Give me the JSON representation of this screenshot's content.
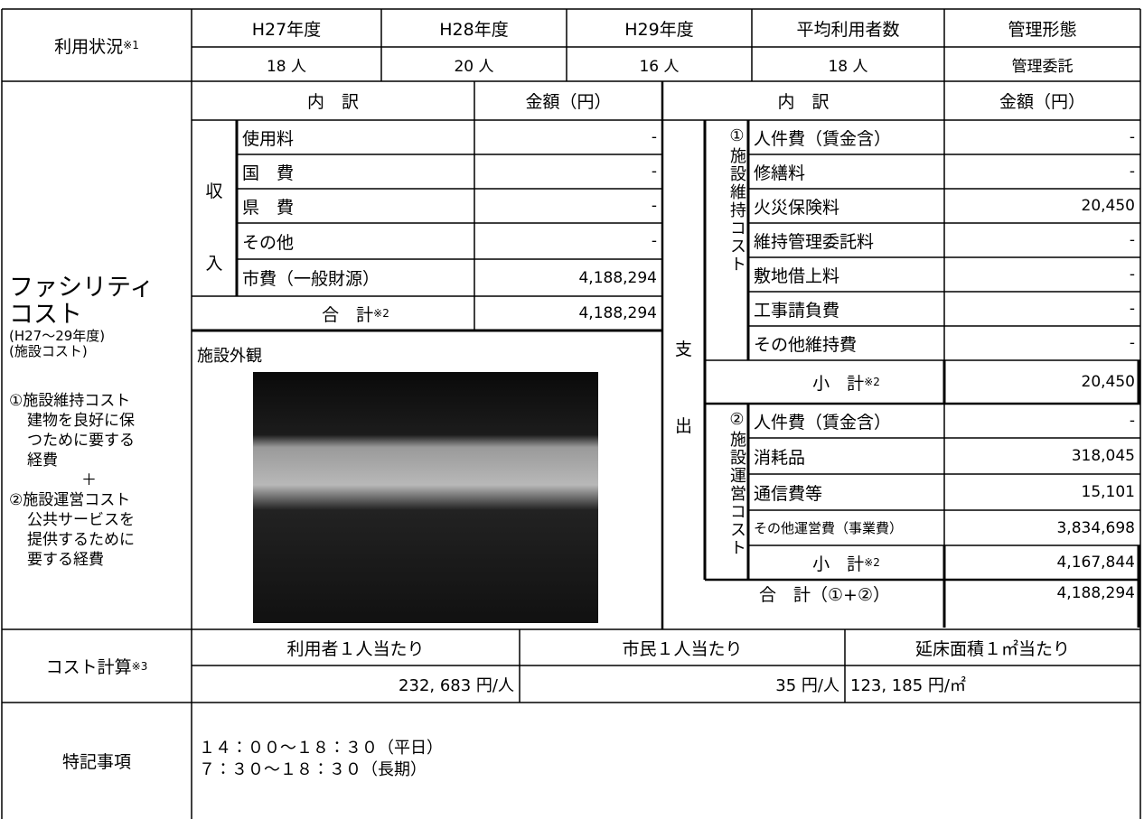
{
  "usage": {
    "label": "利用状況",
    "label_note": "※1",
    "headers": [
      "H27年度",
      "H28年度",
      "H29年度",
      "平均利用者数",
      "管理形態"
    ],
    "values": [
      "18 人",
      "20 人",
      "16 人",
      "18 人",
      "管理委託"
    ]
  },
  "facility_cost": {
    "title_lines": [
      "ファシリティ",
      "コスト"
    ],
    "sub_lines": [
      "(H27～29年度)",
      "(施設コスト)"
    ],
    "explanation": [
      "①施設維持コスト",
      "建物を良好に保",
      "つために要する",
      "経費",
      "＋",
      "②施設運営コスト",
      "公共サービスを",
      "提供するために",
      "要する経費"
    ],
    "income": {
      "header_item": "内　訳",
      "header_amount": "金額（円）",
      "label_chars": [
        "収",
        "入"
      ],
      "rows": [
        {
          "item": "使用料",
          "amount": "-"
        },
        {
          "item": "国　費",
          "amount": "-"
        },
        {
          "item": "県　費",
          "amount": "-"
        },
        {
          "item": "その他",
          "amount": "-"
        },
        {
          "item": "市費（一般財源）",
          "amount": "4,188,294"
        }
      ],
      "total": {
        "item": "合　計",
        "note": "※2",
        "amount": "4,188,294"
      }
    },
    "photo": {
      "label": "施設外観"
    },
    "expenditure": {
      "header_item": "内　訳",
      "header_amount": "金額（円）",
      "label_chars": [
        "支",
        "出"
      ],
      "maintenance": {
        "label": "①施設維持コスト",
        "rows": [
          {
            "item": "人件費（賃金含）",
            "amount": "-"
          },
          {
            "item": "修繕料",
            "amount": "-"
          },
          {
            "item": "火災保険料",
            "amount": "20,450"
          },
          {
            "item": "維持管理委託料",
            "amount": "-"
          },
          {
            "item": "敷地借上料",
            "amount": "-"
          },
          {
            "item": "工事請負費",
            "amount": "-"
          },
          {
            "item": "その他維持費",
            "amount": "-"
          }
        ],
        "subtotal": {
          "item": "小　計",
          "note": "※2",
          "amount": "20,450"
        }
      },
      "operation": {
        "label": "②施設運営コスト",
        "rows": [
          {
            "item": "人件費（賃金含）",
            "amount": "-"
          },
          {
            "item": "消耗品",
            "amount": "318,045"
          },
          {
            "item": "通信費等",
            "amount": "15,101"
          },
          {
            "item": "その他運営費（事業費）",
            "amount": "3,834,698"
          }
        ],
        "subtotal": {
          "item": "小　計",
          "note": "※2",
          "amount": "4,167,844"
        }
      },
      "total": {
        "item": "合　計（①+②）",
        "amount": "4,188,294"
      }
    }
  },
  "cost_calc": {
    "label": "コスト計算",
    "label_note": "※3",
    "headers": [
      "利用者１人当たり",
      "市民１人当たり",
      "延床面積１㎡当たり"
    ],
    "values": [
      "232, 683 円/人",
      "35 円/人",
      "123, 185 円/㎡"
    ]
  },
  "notes": {
    "label": "特記事項",
    "lines": [
      "１４：００～１８：３０（平日）",
      "７：３０～１８：３０（長期）"
    ]
  }
}
